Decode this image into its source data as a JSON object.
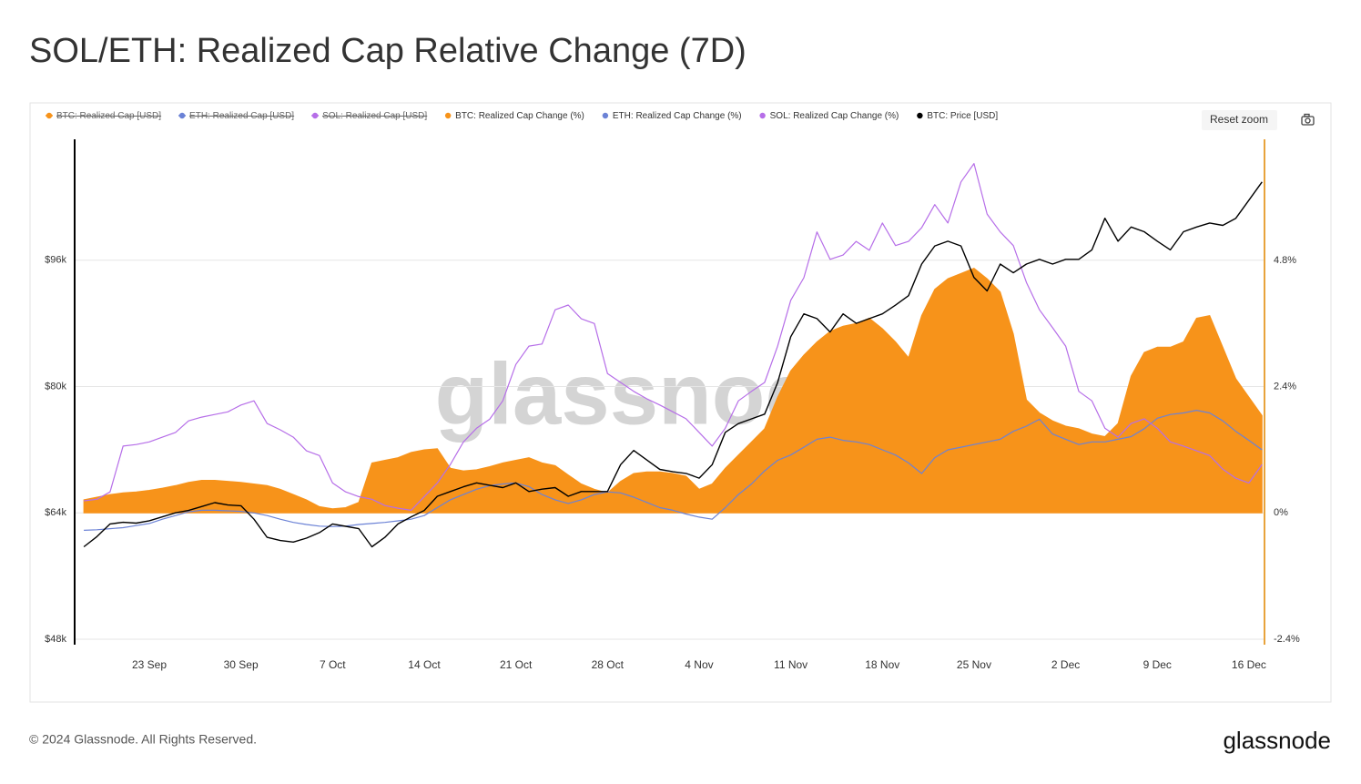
{
  "chart_data": {
    "type": "line",
    "title": "SOL/ETH: Realized Cap Relative Change (7D)",
    "watermark": "glassnode",
    "reset_button": "Reset zoom",
    "footer": "© 2024 Glassnode. All Rights Reserved.",
    "logo": "glassnode",
    "categories": [
      null,
      null,
      null,
      null,
      null,
      "23 Sep",
      null,
      null,
      null,
      null,
      null,
      null,
      "30 Sep",
      null,
      null,
      null,
      null,
      null,
      null,
      "7 Oct",
      null,
      null,
      null,
      null,
      null,
      null,
      "14 Oct",
      null,
      null,
      null,
      null,
      null,
      null,
      "21 Oct",
      null,
      null,
      null,
      null,
      null,
      null,
      "28 Oct",
      null,
      null,
      null,
      null,
      null,
      null,
      "4 Nov",
      null,
      null,
      null,
      null,
      null,
      null,
      "11 Nov",
      null,
      null,
      null,
      null,
      null,
      null,
      "18 Nov",
      null,
      null,
      null,
      null,
      null,
      null,
      "25 Nov",
      null,
      null,
      null,
      null,
      null,
      null,
      "2 Dec",
      null,
      null,
      null,
      null,
      null,
      null,
      "9 Dec",
      null,
      null,
      null,
      null,
      null,
      null,
      "16 Dec",
      null
    ],
    "hidden_series": [
      {
        "name": "BTC: Realized Cap [USD]",
        "color": "#f7931a"
      },
      {
        "name": "ETH: Realized Cap [USD]",
        "color": "#6b82d6"
      },
      {
        "name": "SOL: Realized Cap [USD]",
        "color": "#b66ee8"
      }
    ],
    "series": [
      {
        "name": "BTC: Realized Cap Change (%)",
        "color": "#f7931a",
        "kind": "area",
        "axis": "y2",
        "values": [
          0.25,
          0.3,
          0.35,
          0.38,
          0.4,
          0.43,
          0.47,
          0.52,
          0.58,
          0.62,
          0.62,
          0.6,
          0.58,
          0.55,
          0.52,
          0.45,
          0.35,
          0.25,
          0.12,
          0.08,
          0.1,
          0.2,
          0.95,
          1.0,
          1.05,
          1.15,
          1.2,
          1.22,
          0.85,
          0.8,
          0.82,
          0.88,
          0.95,
          1.0,
          1.05,
          0.95,
          0.9,
          0.72,
          0.55,
          0.45,
          0.38,
          0.6,
          0.75,
          0.78,
          0.78,
          0.75,
          0.7,
          0.45,
          0.55,
          0.85,
          1.1,
          1.35,
          1.6,
          2.2,
          2.7,
          3.0,
          3.25,
          3.45,
          3.55,
          3.6,
          3.7,
          3.5,
          3.25,
          2.95,
          3.75,
          4.25,
          4.45,
          4.55,
          4.65,
          4.45,
          4.2,
          3.4,
          2.15,
          1.9,
          1.75,
          1.65,
          1.6,
          1.5,
          1.45,
          1.7,
          2.6,
          3.05,
          3.15,
          3.15,
          3.25,
          3.7,
          3.75,
          3.15,
          2.55,
          2.2,
          1.85
        ]
      },
      {
        "name": "ETH: Realized Cap Change (%)",
        "color": "#6b82d6",
        "kind": "line",
        "axis": "y2",
        "values": [
          -0.33,
          -0.32,
          -0.3,
          -0.28,
          -0.24,
          -0.2,
          -0.12,
          -0.05,
          0.02,
          0.05,
          0.05,
          0.04,
          0.03,
          0.0,
          -0.05,
          -0.12,
          -0.18,
          -0.22,
          -0.25,
          -0.26,
          -0.25,
          -0.22,
          -0.2,
          -0.18,
          -0.15,
          -0.12,
          -0.05,
          0.1,
          0.25,
          0.35,
          0.45,
          0.52,
          0.55,
          0.57,
          0.5,
          0.35,
          0.25,
          0.18,
          0.25,
          0.35,
          0.4,
          0.38,
          0.3,
          0.2,
          0.1,
          0.05,
          -0.02,
          -0.08,
          -0.12,
          0.1,
          0.35,
          0.55,
          0.8,
          1.0,
          1.1,
          1.25,
          1.4,
          1.44,
          1.38,
          1.35,
          1.3,
          1.2,
          1.1,
          0.95,
          0.75,
          1.05,
          1.2,
          1.25,
          1.3,
          1.35,
          1.4,
          1.55,
          1.65,
          1.78,
          1.5,
          1.4,
          1.3,
          1.35,
          1.35,
          1.4,
          1.45,
          1.6,
          1.8,
          1.87,
          1.9,
          1.95,
          1.9,
          1.75,
          1.55,
          1.38,
          1.2
        ]
      },
      {
        "name": "SOL: Realized Cap Change (%)",
        "color": "#b66ee8",
        "kind": "line",
        "axis": "y2",
        "values": [
          0.23,
          0.26,
          0.4,
          1.27,
          1.3,
          1.35,
          1.44,
          1.53,
          1.75,
          1.82,
          1.87,
          1.92,
          2.05,
          2.13,
          1.7,
          1.58,
          1.44,
          1.18,
          1.09,
          0.57,
          0.4,
          0.31,
          0.26,
          0.14,
          0.09,
          0.05,
          0.31,
          0.57,
          0.92,
          1.35,
          1.61,
          1.78,
          2.13,
          2.82,
          3.17,
          3.21,
          3.86,
          3.95,
          3.69,
          3.6,
          2.65,
          2.48,
          2.31,
          2.17,
          2.05,
          1.92,
          1.79,
          1.53,
          1.27,
          1.61,
          2.13,
          2.31,
          2.48,
          3.17,
          4.04,
          4.47,
          5.34,
          4.82,
          4.9,
          5.16,
          4.99,
          5.51,
          5.08,
          5.16,
          5.42,
          5.86,
          5.51,
          6.29,
          6.64,
          5.68,
          5.34,
          5.08,
          4.38,
          3.86,
          3.52,
          3.17,
          2.31,
          2.13,
          1.61,
          1.44,
          1.7,
          1.79,
          1.61,
          1.35,
          1.27,
          1.18,
          1.09,
          0.83,
          0.66,
          0.57,
          0.92
        ]
      },
      {
        "name": "BTC: Price [USD]",
        "color": "#000000",
        "kind": "line",
        "axis": "y",
        "values": [
          59700,
          61000,
          62600,
          62800,
          62700,
          63000,
          63500,
          64000,
          64300,
          64800,
          65300,
          65000,
          64900,
          63200,
          60900,
          60500,
          60300,
          60800,
          61500,
          62600,
          62300,
          62000,
          59700,
          60900,
          62600,
          63500,
          64300,
          66100,
          66700,
          67300,
          67800,
          67500,
          67200,
          67800,
          66700,
          67000,
          67200,
          66100,
          66700,
          66700,
          66700,
          70100,
          71900,
          70700,
          69500,
          69200,
          69000,
          68400,
          70100,
          74200,
          75300,
          75900,
          76500,
          80500,
          86300,
          89200,
          88600,
          86900,
          89200,
          88000,
          88600,
          89200,
          90300,
          91500,
          95500,
          97800,
          98400,
          97800,
          93800,
          92100,
          95500,
          94400,
          95500,
          96100,
          95500,
          96100,
          96100,
          97300,
          101300,
          98400,
          100200,
          99600,
          98400,
          97300,
          99600,
          100200,
          100700,
          100400,
          101300,
          103600,
          105900
        ]
      }
    ],
    "ylim": [
      48000,
      111300
    ],
    "yticks": [
      {
        "value": 48000,
        "label": "$48k"
      },
      {
        "value": 64000,
        "label": "$64k"
      },
      {
        "value": 80000,
        "label": "$80k"
      },
      {
        "value": 96000,
        "label": "$96k"
      }
    ],
    "y2lim": [
      -2.4,
      7.1
    ],
    "y2ticks": [
      {
        "value": -2.4,
        "label": "-2.4%"
      },
      {
        "value": 0,
        "label": "0%"
      },
      {
        "value": 2.4,
        "label": "2.4%"
      },
      {
        "value": 4.8,
        "label": "4.8%"
      }
    ],
    "grid": true,
    "left_axis_color": "#000000",
    "right_axis_color": "#e8a33c"
  }
}
